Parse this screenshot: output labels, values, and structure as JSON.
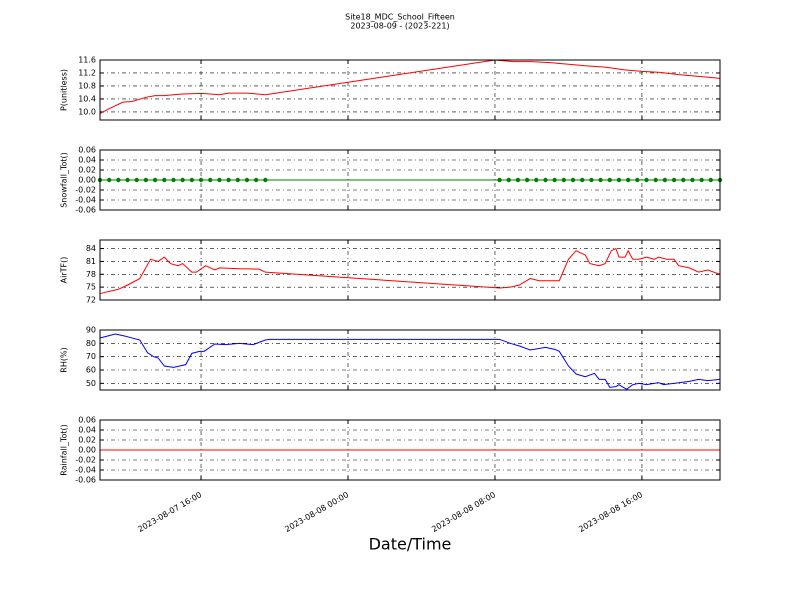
{
  "title": "Site18_MDC_School_Fifteen",
  "subtitle": "2023-08-09 - (2023-221)",
  "xlabel": "Date/Time",
  "x_axis": {
    "xlim": [
      "2023-08-07 10:30",
      "2023-08-08 20:15"
    ],
    "xticks": [
      {
        "value": "2023-08-07 16:00",
        "label": "2023-08-07 16:00"
      },
      {
        "value": "2023-08-08 00:00",
        "label": "2023-08-08 00:00"
      },
      {
        "value": "2023-08-08 08:00",
        "label": "2023-08-08 08:00"
      },
      {
        "value": "2023-08-08 16:00",
        "label": "2023-08-08 16:00"
      }
    ]
  },
  "chart_data": [
    {
      "type": "line",
      "ylabel": "P(unitless)",
      "color": "#ff0000",
      "grid": true,
      "ylim": [
        9.75,
        11.6
      ],
      "yticks": [
        {
          "value": 10,
          "label": "10.0"
        },
        10.4,
        10.8,
        11.2,
        11.6
      ],
      "x": [
        "2023-08-07 10:30",
        "2023-08-07 11:00",
        "2023-08-07 11:45",
        "2023-08-07 12:15",
        "2023-08-07 13:00",
        "2023-08-07 13:30",
        "2023-08-07 14:00",
        "2023-08-07 14:30",
        "2023-08-07 15:00",
        "2023-08-07 16:00",
        "2023-08-07 16:30",
        "2023-08-07 17:00",
        "2023-08-07 17:30",
        "2023-08-07 18:30",
        "2023-08-07 19:30",
        "2023-08-08 08:00",
        "2023-08-08 09:00",
        "2023-08-08 10:00",
        "2023-08-08 11:00",
        "2023-08-08 12:00",
        "2023-08-08 13:00",
        "2023-08-08 14:00",
        "2023-08-08 15:00",
        "2023-08-08 16:00",
        "2023-08-08 17:00",
        "2023-08-08 18:00",
        "2023-08-08 19:00",
        "2023-08-08 20:00",
        "2023-08-08 20:15"
      ],
      "values": [
        9.95,
        10.1,
        10.3,
        10.32,
        10.45,
        10.5,
        10.5,
        10.53,
        10.55,
        10.57,
        10.55,
        10.53,
        10.58,
        10.58,
        10.53,
        11.6,
        11.55,
        11.55,
        11.52,
        11.47,
        11.42,
        11.38,
        11.3,
        11.25,
        11.22,
        11.15,
        11.1,
        11.05,
        11.03
      ]
    },
    {
      "type": "line",
      "ylabel": "Snowfall_Tot()",
      "color": "#008000",
      "markers": true,
      "grid": true,
      "ylim": [
        -0.06,
        0.06
      ],
      "yticks": [
        -0.06,
        -0.04,
        -0.02,
        {
          "value": 0,
          "label": "0.00"
        },
        0.02,
        0.04,
        0.06
      ],
      "x": [
        "2023-08-07 10:30",
        "2023-08-07 11:00",
        "2023-08-07 11:30",
        "2023-08-07 12:00",
        "2023-08-07 12:30",
        "2023-08-07 13:00",
        "2023-08-07 13:30",
        "2023-08-07 14:00",
        "2023-08-07 14:30",
        "2023-08-07 15:00",
        "2023-08-07 15:30",
        "2023-08-07 16:00",
        "2023-08-07 16:30",
        "2023-08-07 17:00",
        "2023-08-07 17:30",
        "2023-08-07 18:00",
        "2023-08-07 18:30",
        "2023-08-07 19:00",
        "2023-08-07 19:30",
        "2023-08-08 08:15",
        "2023-08-08 08:45",
        "2023-08-08 09:15",
        "2023-08-08 09:45",
        "2023-08-08 10:15",
        "2023-08-08 10:45",
        "2023-08-08 11:15",
        "2023-08-08 11:45",
        "2023-08-08 12:15",
        "2023-08-08 12:45",
        "2023-08-08 13:15",
        "2023-08-08 13:45",
        "2023-08-08 14:15",
        "2023-08-08 14:45",
        "2023-08-08 15:15",
        "2023-08-08 15:45",
        "2023-08-08 16:15",
        "2023-08-08 16:45",
        "2023-08-08 17:15",
        "2023-08-08 17:45",
        "2023-08-08 18:15",
        "2023-08-08 18:45",
        "2023-08-08 19:15",
        "2023-08-08 19:45",
        "2023-08-08 20:15"
      ],
      "values": [
        0,
        0,
        0,
        0,
        0,
        0,
        0,
        0,
        0,
        0,
        0,
        0,
        0,
        0,
        0,
        0,
        0,
        0,
        0,
        0,
        0,
        0,
        0,
        0,
        0,
        0,
        0,
        0,
        0,
        0,
        0,
        0,
        0,
        0,
        0,
        0,
        0,
        0,
        0,
        0,
        0,
        0,
        0,
        0
      ]
    },
    {
      "type": "line",
      "ylabel": "AirTF()",
      "color": "#ff0000",
      "grid": true,
      "ylim": [
        72,
        86
      ],
      "yticks": [
        72,
        75,
        78,
        81,
        84
      ],
      "x": [
        "2023-08-07 10:30",
        "2023-08-07 11:30",
        "2023-08-07 12:00",
        "2023-08-07 12:40",
        "2023-08-07 13:15",
        "2023-08-07 13:40",
        "2023-08-07 14:00",
        "2023-08-07 14:20",
        "2023-08-07 14:45",
        "2023-08-07 15:00",
        "2023-08-07 15:30",
        "2023-08-07 15:45",
        "2023-08-07 16:15",
        "2023-08-07 16:45",
        "2023-08-07 17:00",
        "2023-08-07 18:05",
        "2023-08-07 19:10",
        "2023-08-07 19:30",
        "2023-08-08 08:15",
        "2023-08-08 08:50",
        "2023-08-08 09:20",
        "2023-08-08 09:55",
        "2023-08-08 10:25",
        "2023-08-08 11:30",
        "2023-08-08 12:00",
        "2023-08-08 12:25",
        "2023-08-08 12:55",
        "2023-08-08 13:10",
        "2023-08-08 13:40",
        "2023-08-08 14:00",
        "2023-08-08 14:20",
        "2023-08-08 14:35",
        "2023-08-08 14:45",
        "2023-08-08 15:05",
        "2023-08-08 15:15",
        "2023-08-08 15:30",
        "2023-08-08 15:50",
        "2023-08-08 16:15",
        "2023-08-08 16:40",
        "2023-08-08 16:55",
        "2023-08-08 17:20",
        "2023-08-08 17:45",
        "2023-08-08 18:00",
        "2023-08-08 18:35",
        "2023-08-08 19:05",
        "2023-08-08 19:35",
        "2023-08-08 20:15"
      ],
      "values": [
        73.5,
        74.5,
        75.5,
        77,
        81.5,
        81,
        82,
        80.5,
        80,
        80.5,
        78.5,
        78.5,
        80,
        79,
        79.5,
        79.3,
        79.2,
        78.5,
        74.8,
        75,
        75.5,
        77,
        76.5,
        76.5,
        81.5,
        83.5,
        82.5,
        80.5,
        80,
        80.5,
        83.5,
        84,
        82,
        82,
        83.5,
        81.5,
        81.5,
        82,
        81.5,
        82,
        81.5,
        81.5,
        80,
        79.5,
        78.5,
        79,
        78
      ]
    },
    {
      "type": "line",
      "ylabel": "RH(%)",
      "color": "#0000ff",
      "grid": true,
      "ylim": [
        45,
        90
      ],
      "yticks": [
        50,
        60,
        70,
        80,
        90
      ],
      "x": [
        "2023-08-07 10:30",
        "2023-08-07 11:20",
        "2023-08-07 11:50",
        "2023-08-07 12:40",
        "2023-08-07 13:05",
        "2023-08-07 13:25",
        "2023-08-07 13:40",
        "2023-08-07 14:00",
        "2023-08-07 14:30",
        "2023-08-07 15:10",
        "2023-08-07 15:30",
        "2023-08-07 15:55",
        "2023-08-07 16:10",
        "2023-08-07 16:45",
        "2023-08-07 17:20",
        "2023-08-07 18:05",
        "2023-08-07 18:50",
        "2023-08-07 19:30",
        "2023-08-07 19:45",
        "2023-08-08 08:15",
        "2023-08-08 08:50",
        "2023-08-08 09:20",
        "2023-08-08 09:55",
        "2023-08-08 10:45",
        "2023-08-08 11:15",
        "2023-08-08 11:30",
        "2023-08-08 12:00",
        "2023-08-08 12:25",
        "2023-08-08 12:55",
        "2023-08-08 13:25",
        "2023-08-08 13:40",
        "2023-08-08 14:00",
        "2023-08-08 14:15",
        "2023-08-08 14:35",
        "2023-08-08 14:45",
        "2023-08-08 15:10",
        "2023-08-08 15:30",
        "2023-08-08 15:50",
        "2023-08-08 16:15",
        "2023-08-08 16:55",
        "2023-08-08 17:10",
        "2023-08-08 17:45",
        "2023-08-08 18:35",
        "2023-08-08 19:05",
        "2023-08-08 19:35",
        "2023-08-08 20:15"
      ],
      "values": [
        84,
        87,
        85.5,
        82.5,
        73,
        70,
        69,
        63,
        62,
        64,
        72.5,
        74,
        74,
        79.5,
        79,
        80,
        79,
        82.5,
        83,
        83,
        80,
        78,
        75,
        77,
        75.5,
        74,
        63,
        57,
        55,
        57.5,
        53,
        53,
        47,
        47.5,
        49,
        45.5,
        49,
        50,
        49,
        50.5,
        49,
        50,
        51.5,
        53,
        52,
        53
      ]
    },
    {
      "type": "line",
      "ylabel": "Rainfall_Tot()",
      "color": "#ff0000",
      "grid": true,
      "ylim": [
        -0.06,
        0.06
      ],
      "yticks": [
        -0.06,
        -0.04,
        -0.02,
        {
          "value": 0,
          "label": "0.00"
        },
        0.02,
        0.04,
        0.06
      ],
      "x": [
        "2023-08-07 10:30",
        "2023-08-08 20:15"
      ],
      "values": [
        0,
        0
      ]
    }
  ]
}
